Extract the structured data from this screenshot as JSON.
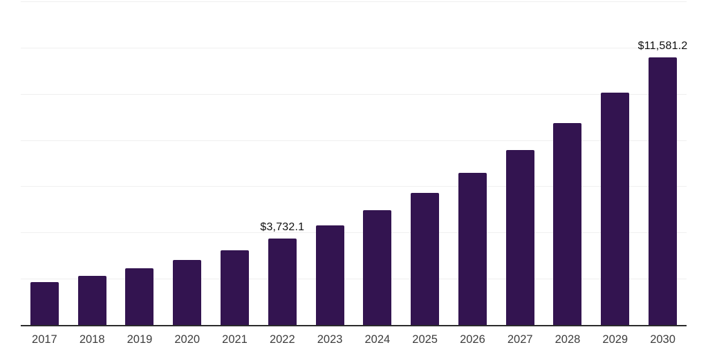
{
  "chart_data": {
    "type": "bar",
    "title": "",
    "xlabel": "",
    "ylabel": "",
    "categories": [
      "2017",
      "2018",
      "2019",
      "2020",
      "2021",
      "2022",
      "2023",
      "2024",
      "2025",
      "2026",
      "2027",
      "2028",
      "2029",
      "2030"
    ],
    "values": [
      1850,
      2130,
      2455,
      2825,
      3240,
      3732.1,
      4299,
      4953,
      5706,
      6573,
      7572,
      8723,
      10049,
      11581.2
    ],
    "value_labels_shown": [
      {
        "category": "2022",
        "label": "$3,732.1"
      },
      {
        "category": "2030",
        "label": "$11,581.2"
      }
    ],
    "ylim": [
      0,
      14000
    ],
    "gridline_values": [
      2000,
      4000,
      6000,
      8000,
      10000,
      12000,
      14000
    ],
    "y_axis_tick_labels_visible": false,
    "legend": "none",
    "grid": "horizontal",
    "colors": {
      "bar": "#331450",
      "gridline": "#efefef",
      "axis_line": "#2b2b2b",
      "tick_label": "#3d3d3d",
      "value_label": "#0f0f0f",
      "background": "#ffffff"
    }
  }
}
